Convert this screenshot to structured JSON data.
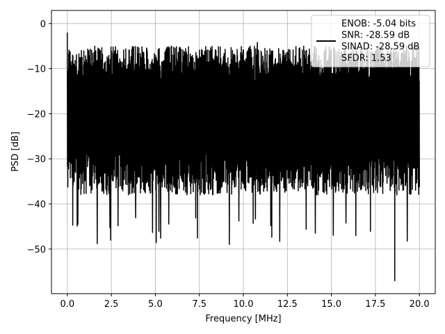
{
  "chart_data": {
    "type": "line",
    "title": "",
    "xlabel": "Frequency [MHz]",
    "ylabel": "PSD [dB]",
    "xlim": [
      -0.9,
      20.9
    ],
    "ylim": [
      -59.9,
      2.9
    ],
    "xticks": [
      0.0,
      2.5,
      5.0,
      7.5,
      10.0,
      12.5,
      15.0,
      17.5,
      20.0
    ],
    "xtick_labels": [
      "0.0",
      "2.5",
      "5.0",
      "7.5",
      "10.0",
      "12.5",
      "15.0",
      "17.5",
      "20.0"
    ],
    "yticks": [
      0,
      -10,
      -20,
      -30,
      -40,
      -50
    ],
    "ytick_labels": [
      "0",
      "−10",
      "−20",
      "−30",
      "−40",
      "−50"
    ],
    "grid": true,
    "legend_position": "top-right",
    "series": [
      {
        "name": "ENOB: -5.04 bits\nSNR: -28.59 dB\nSINAD: -28.59 dB\nSFDR: 1.53",
        "color": "#000000",
        "sample_count": 2000,
        "x_range": [
          0,
          20
        ],
        "noise_band_db": [
          -35,
          -5
        ],
        "notable_points": [
          {
            "x": 0.0,
            "y": -2.0
          },
          {
            "x": 1.7,
            "y": -48.8
          },
          {
            "x": 5.3,
            "y": -47.6
          },
          {
            "x": 9.2,
            "y": -49.0
          },
          {
            "x": 18.6,
            "y": -57.0
          },
          {
            "x": 10.8,
            "y": -4.2
          }
        ]
      }
    ]
  }
}
